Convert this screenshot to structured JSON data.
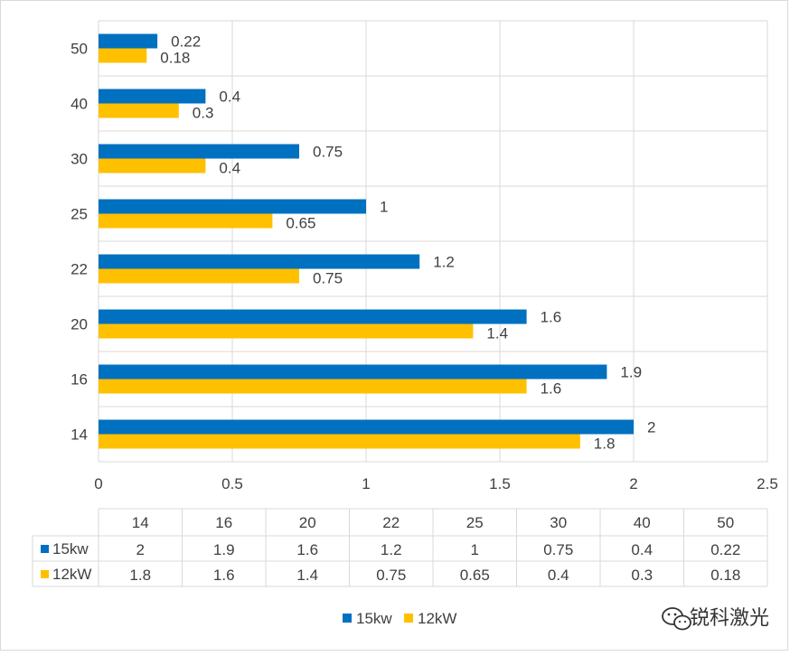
{
  "chart_data": {
    "type": "bar",
    "orientation": "horizontal",
    "categories": [
      "14",
      "16",
      "20",
      "22",
      "25",
      "30",
      "40",
      "50"
    ],
    "series": [
      {
        "name": "15kw",
        "color": "#0070c0",
        "values": [
          2,
          1.9,
          1.6,
          1.2,
          1,
          0.75,
          0.4,
          0.22
        ]
      },
      {
        "name": "12kW",
        "color": "#ffc000",
        "values": [
          1.8,
          1.6,
          1.4,
          0.75,
          0.65,
          0.4,
          0.3,
          0.18
        ]
      }
    ],
    "xlim": [
      0,
      2.5
    ],
    "x_ticks": [
      "0",
      "0.5",
      "1",
      "1.5",
      "2",
      "2.5"
    ],
    "grid": true,
    "legend": "bottom",
    "data_table": true
  },
  "value_labels": {
    "15kw": [
      "2",
      "1.9",
      "1.6",
      "1.2",
      "1",
      "0.75",
      "0.4",
      "0.22"
    ],
    "12kW": [
      "1.8",
      "1.6",
      "1.4",
      "0.75",
      "0.65",
      "0.4",
      "0.3",
      "0.18"
    ]
  },
  "watermark": {
    "text": "锐科激光",
    "icon": "wechat-icon"
  }
}
